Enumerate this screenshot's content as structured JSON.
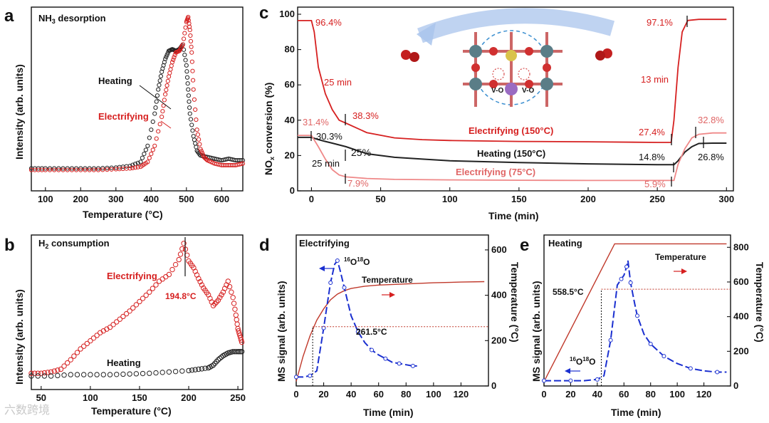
{
  "chart_data": [
    {
      "panel": "a",
      "type": "scatter",
      "title": "NH3 desorption",
      "xlabel": "Temperature (°C)",
      "ylabel": "Intensity (arb. units)",
      "xlim": [
        60,
        660
      ],
      "xticks": [
        100,
        200,
        300,
        400,
        500,
        600
      ],
      "series": [
        {
          "name": "Heating",
          "color": "#222222",
          "x": [
            60,
            100,
            150,
            200,
            250,
            300,
            340,
            370,
            390,
            410,
            420,
            430,
            440,
            450,
            460,
            470,
            480,
            490,
            500,
            505,
            510,
            520,
            530,
            540,
            560,
            580,
            600,
            620,
            640,
            660
          ],
          "y": [
            0.06,
            0.06,
            0.06,
            0.06,
            0.06,
            0.065,
            0.075,
            0.1,
            0.2,
            0.4,
            0.55,
            0.66,
            0.74,
            0.79,
            0.8,
            0.79,
            0.8,
            0.83,
            0.7,
            0.55,
            0.4,
            0.26,
            0.17,
            0.14,
            0.13,
            0.12,
            0.11,
            0.12,
            0.11,
            0.11
          ]
        },
        {
          "name": "Electrifying",
          "color": "#d62020",
          "x": [
            60,
            100,
            150,
            200,
            250,
            300,
            340,
            370,
            390,
            410,
            430,
            440,
            450,
            460,
            470,
            480,
            490,
            500,
            505,
            510,
            515,
            520,
            530,
            540,
            550,
            560,
            580,
            600,
            620,
            640,
            660
          ],
          "y": [
            0.05,
            0.05,
            0.05,
            0.05,
            0.05,
            0.055,
            0.06,
            0.07,
            0.1,
            0.2,
            0.38,
            0.52,
            0.63,
            0.72,
            0.78,
            0.79,
            0.83,
            0.97,
            1.0,
            0.92,
            0.78,
            0.55,
            0.3,
            0.18,
            0.13,
            0.11,
            0.09,
            0.08,
            0.08,
            0.08,
            0.09
          ]
        }
      ]
    },
    {
      "panel": "b",
      "type": "scatter",
      "title": "H2 consumption",
      "xlabel": "Temperature (°C)",
      "ylabel": "Intensity (arb. units)",
      "xlim": [
        40,
        255
      ],
      "xticks": [
        50,
        100,
        150,
        200,
        250
      ],
      "annotation": "194.8°C",
      "series": [
        {
          "name": "Electrifying",
          "color": "#d62020",
          "x": [
            40,
            50,
            60,
            70,
            80,
            90,
            100,
            110,
            120,
            130,
            140,
            150,
            160,
            170,
            180,
            190,
            195,
            200,
            205,
            210,
            215,
            220,
            225,
            230,
            235,
            240,
            245,
            248,
            250,
            252,
            254
          ],
          "y": [
            0.02,
            0.02,
            0.03,
            0.05,
            0.12,
            0.2,
            0.26,
            0.32,
            0.36,
            0.42,
            0.48,
            0.55,
            0.62,
            0.7,
            0.75,
            0.86,
            0.98,
            0.85,
            0.8,
            0.72,
            0.65,
            0.6,
            0.52,
            0.56,
            0.62,
            0.7,
            0.58,
            0.45,
            0.35,
            0.3,
            0.25
          ]
        },
        {
          "name": "Heating",
          "color": "#222222",
          "x": [
            40,
            60,
            80,
            100,
            120,
            140,
            160,
            180,
            200,
            210,
            220,
            225,
            230,
            235,
            240,
            245,
            250,
            254
          ],
          "y": [
            0.0,
            0.0,
            0.01,
            0.01,
            0.01,
            0.015,
            0.02,
            0.03,
            0.04,
            0.05,
            0.06,
            0.08,
            0.12,
            0.15,
            0.17,
            0.18,
            0.18,
            0.18
          ]
        }
      ]
    },
    {
      "panel": "c",
      "type": "line",
      "xlabel": "Time (min)",
      "ylabel": "NOx conversion (%)",
      "xlim": [
        -10,
        305
      ],
      "ylim": [
        0,
        100
      ],
      "xticks": [
        0,
        50,
        100,
        150,
        200,
        250,
        300
      ],
      "yticks": [
        0,
        20,
        40,
        60,
        80,
        100
      ],
      "series": [
        {
          "name": "Electrifying (150°C)",
          "color": "#d62020",
          "x": [
            -10,
            0,
            2,
            5,
            10,
            15,
            20,
            25,
            40,
            60,
            80,
            100,
            150,
            200,
            250,
            260,
            262,
            265,
            268,
            272,
            280,
            290,
            300
          ],
          "y": [
            96.4,
            96.4,
            90,
            70,
            55,
            46,
            40,
            38.3,
            33,
            30,
            29,
            28.5,
            28,
            27.8,
            27.4,
            27.4,
            40,
            70,
            90,
            96.5,
            97.1,
            97.1,
            97.1
          ]
        },
        {
          "name": "Heating (150°C)",
          "color": "#222222",
          "x": [
            -10,
            0,
            5,
            10,
            15,
            20,
            25,
            40,
            60,
            80,
            100,
            150,
            200,
            250,
            262,
            265,
            270,
            275,
            280,
            290,
            300
          ],
          "y": [
            30.3,
            30.3,
            29,
            28,
            27,
            26,
            25,
            21,
            19,
            18,
            17,
            16,
            15.3,
            14.8,
            14.8,
            17,
            22,
            25,
            26.8,
            27,
            27
          ]
        },
        {
          "name": "Electrifying (75°C)",
          "color": "#ef8888",
          "x": [
            -10,
            0,
            5,
            10,
            15,
            20,
            25,
            40,
            60,
            100,
            150,
            200,
            250,
            262,
            265,
            270,
            275,
            280,
            290,
            300
          ],
          "y": [
            31.4,
            31.4,
            25,
            18,
            12,
            9,
            7.9,
            7,
            6.5,
            6.2,
            6.0,
            5.9,
            5.9,
            5.9,
            15,
            24,
            30,
            32,
            32.8,
            32.8
          ]
        }
      ],
      "annotations": [
        "96.4%",
        "25 min",
        "31.4%",
        "38.3%",
        "30.3%",
        "25%",
        "25 min",
        "7.9%",
        "97.1%",
        "13 min",
        "27.4%",
        "32.8%",
        "14.8%",
        "26.8%",
        "5.9%",
        "V-O",
        "V-O"
      ]
    },
    {
      "panel": "d",
      "type": "line",
      "title": "Electrifying",
      "xlabel": "Time (min)",
      "ylabel": "MS signal (arb. units)",
      "ylabel_right": "Temperature (°C)",
      "xlim": [
        0,
        140
      ],
      "ylim_right": [
        0,
        650
      ],
      "xticks": [
        0,
        20,
        40,
        60,
        80,
        100,
        120
      ],
      "yticks_right": [
        0,
        200,
        400,
        600
      ],
      "annotation": "261.5°C",
      "series": [
        {
          "name": "16O18O",
          "color": "#1a2fd0",
          "x": [
            0,
            5,
            10,
            15,
            20,
            22,
            25,
            28,
            30,
            32,
            35,
            40,
            45,
            50,
            55,
            60,
            65,
            70,
            75,
            80,
            85,
            88
          ],
          "y": [
            0.05,
            0.05,
            0.06,
            0.1,
            0.45,
            0.6,
            0.82,
            0.97,
            1.0,
            0.92,
            0.78,
            0.55,
            0.42,
            0.33,
            0.27,
            0.23,
            0.2,
            0.17,
            0.16,
            0.15,
            0.14,
            0.14
          ]
        },
        {
          "name": "Temperature",
          "color": "#c0392b",
          "x": [
            0,
            5,
            10,
            15,
            20,
            25,
            30,
            35,
            40,
            50,
            60,
            80,
            100,
            120,
            137
          ],
          "y": [
            20,
            130,
            220,
            290,
            340,
            380,
            405,
            420,
            430,
            440,
            445,
            450,
            455,
            458,
            460
          ]
        }
      ]
    },
    {
      "panel": "e",
      "type": "line",
      "title": "Heating",
      "xlabel": "Time (min)",
      "ylabel": "MS signal (arb. units)",
      "ylabel_right": "Temperature (°C)",
      "xlim": [
        0,
        140
      ],
      "ylim_right": [
        0,
        830
      ],
      "xticks": [
        0,
        20,
        40,
        60,
        80,
        100,
        120
      ],
      "yticks_right": [
        0,
        200,
        400,
        600,
        800
      ],
      "annotation": "558.5°C",
      "series": [
        {
          "name": "16O18O",
          "color": "#1a2fd0",
          "x": [
            0,
            10,
            20,
            30,
            40,
            45,
            50,
            55,
            58,
            60,
            62,
            63,
            65,
            68,
            70,
            75,
            80,
            85,
            90,
            100,
            110,
            120,
            130,
            137
          ],
          "y": [
            0.02,
            0.02,
            0.02,
            0.02,
            0.03,
            0.06,
            0.35,
            0.8,
            0.85,
            0.88,
            0.95,
            1.0,
            0.82,
            0.65,
            0.55,
            0.4,
            0.32,
            0.27,
            0.22,
            0.16,
            0.12,
            0.1,
            0.09,
            0.09
          ]
        },
        {
          "name": "Temperature",
          "color": "#c0392b",
          "x": [
            0,
            53,
            137
          ],
          "y": [
            25,
            820,
            820
          ]
        }
      ]
    }
  ],
  "watermark": "六数跨境"
}
